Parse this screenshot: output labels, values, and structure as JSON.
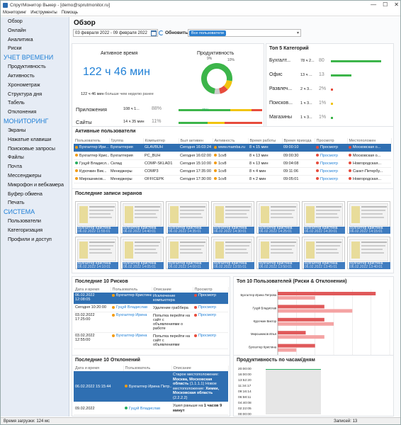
{
  "window": {
    "title": "СпрутМонитор Выкер - [demo@sprutmonitor.ru]",
    "min": "—",
    "max": "☐",
    "close": "✕"
  },
  "menu": [
    "Мониторинг",
    "Инструменты",
    "Помощь"
  ],
  "sidebar": {
    "items_top": [
      "Обзор",
      "Онлайн",
      "Аналитика",
      "Риски"
    ],
    "sec1": "УЧЕТ ВРЕМЕНИ",
    "items1": [
      "Продуктивность",
      "Активность",
      "Хронометраж",
      "Структура дня",
      "Табель",
      "Отклонения"
    ],
    "sec2": "МОНИТОРИНГ",
    "items2": [
      "Экраны",
      "Нажатые клавиши",
      "Поисковые запросы",
      "Файлы",
      "Почта",
      "Мессенджеры",
      "Микрофон и вебкамера",
      "Буфер обмена",
      "Печать"
    ],
    "sec3": "СИСТЕМА",
    "items3": [
      "Пользователи",
      "Категоризация",
      "Профили и доступ"
    ]
  },
  "main": {
    "title": "Обзор",
    "date_range": "03 февраля 2022 - 09 февраля 2022",
    "refresh": "Обновить",
    "user_filter": "Все пользователи",
    "filter_arrow": "▾"
  },
  "active_time": {
    "title": "Активное время",
    "value": "122 ч 46 мин",
    "compare": "122 ч 46 мин",
    "compare_note": "больше чем неделю ранее",
    "rows": [
      {
        "label": "Приложения",
        "time": "108 ч 1...",
        "pct": "88%",
        "g": 0.62,
        "y": 0.25,
        "r": 0.13
      },
      {
        "label": "Сайты",
        "time": "14 ч 35 мин",
        "pct": "11%",
        "g": 0.35,
        "y": 0.2,
        "r": 0.45
      }
    ]
  },
  "productivity": {
    "title": "Продуктивность",
    "pct_green": "75%",
    "pct_yellow": "10%",
    "pct_red": "9%",
    "donut": {
      "green": 75,
      "yellow": 10,
      "red": 9,
      "gray": 6
    }
  },
  "top5": {
    "title": "Топ 5 Категорий",
    "items": [
      {
        "label": "Бухгалт...",
        "time": "78 ч 2...",
        "pct": "80",
        "fill": 0.95,
        "color": "#3cb54a"
      },
      {
        "label": "Офис",
        "time": "13 ч ...",
        "pct": "13",
        "fill": 0.38,
        "color": "#3cb54a"
      },
      {
        "label": "Развлеч...",
        "time": "2 ч 3...",
        "pct": "2%",
        "fill": 0.04,
        "color": "#e74c3c"
      },
      {
        "label": "Поисков...",
        "time": "1 ч 3...",
        "pct": "1%",
        "fill": 0.03,
        "color": "#f1c40f"
      },
      {
        "label": "Магазины",
        "time": "1 ч 3...",
        "pct": "1%",
        "fill": 0.03,
        "color": "#3cb54a"
      }
    ]
  },
  "active_users": {
    "title": "Активные пользователи",
    "headers": [
      "Пользователь",
      "Группа",
      "Компьютер",
      "Был активен",
      "Активность",
      "Время работы",
      "Время прихода",
      "Просмотр",
      "Местоположен"
    ],
    "rows": [
      {
        "user": "Бухгалтер Ири...",
        "dot": "#f39c12",
        "group": "Бухгалтерия",
        "pc": "GLAVBUH",
        "seen": "Сегодня 16:03:24",
        "act": "www.mamba.ru",
        "work": "8 ч 15 мин",
        "arrive": "09:00:10",
        "view": "Просмотр",
        "loc": "Московская о..."
      },
      {
        "user": "Бухгалтер Крис...",
        "dot": "#f39c12",
        "group": "Бухгалтерия",
        "pc": "PC_BUH",
        "seen": "Сегодня 16:02:00",
        "act": "1cv8",
        "work": "8 ч 13 мин",
        "arrive": "09:00:30",
        "view": "Просмотр",
        "loc": "Московская о..."
      },
      {
        "user": "Гуцуй Владисл...",
        "dot": "#27ae60",
        "group": "Склад",
        "pc": "COMP-SKLAD1",
        "seen": "Сегодня 15:10:00",
        "act": "1cv8",
        "work": "8 ч 13 мин",
        "arrive": "09:04:08",
        "view": "Просмотр",
        "loc": "Новгородская..."
      },
      {
        "user": "Курочкин Вик...",
        "dot": "#f39c12",
        "group": "Менеджеры",
        "pc": "COMP3",
        "seen": "Сегодня 17:35:00",
        "act": "1cv8",
        "work": "8 ч 4 мин",
        "arrive": "09:11:06",
        "view": "Просмотр",
        "loc": "Санкт-Петербу..."
      },
      {
        "user": "Мирошников...",
        "dot": "#f39c12",
        "group": "Менеджеры",
        "pc": "OFFICEPK",
        "seen": "Сегодня 17:30:00",
        "act": "1cv8",
        "work": "8 ч 2 мин",
        "arrive": "09:05:01",
        "view": "Просмотр",
        "loc": "Новгородская..."
      }
    ]
  },
  "screens": {
    "title": "Последние записи экранов",
    "row1": [
      {
        "n": "Бухгалтер Кристина",
        "t": "06.02.2022 11:55:01"
      },
      {
        "n": "Бухгалтер Кристина",
        "t": "06.02.2022 14:40:01"
      },
      {
        "n": "Бухгалтер Кристина",
        "t": "06.02.2022 14:35:01"
      },
      {
        "n": "Бухгалтер Кристина",
        "t": "06.02.2022 14:30:01"
      },
      {
        "n": "Бухгалтер Кристина",
        "t": "06.02.2022 14:25:01"
      },
      {
        "n": "Бухгалтер Кристина",
        "t": "06.02.2022 14:20:01"
      },
      {
        "n": "Бухгалтер Кристина",
        "t": "06.02.2022 14:15:01"
      }
    ],
    "row2": [
      {
        "n": "Бухгалтер Кристина",
        "t": "06.02.2022 14:10:01"
      },
      {
        "n": "Бухгалтер Кристина",
        "t": "06.02.2022 14:05:01"
      },
      {
        "n": "Бухгалтер Кристина",
        "t": "06.02.2022 14:00:01"
      },
      {
        "n": "Бухгалтер Кристина",
        "t": "06.02.2022 13:55:01"
      },
      {
        "n": "Бухгалтер Кристина",
        "t": "06.02.2022 13:50:01"
      },
      {
        "n": "Бухгалтер Кристина",
        "t": "06.02.2022 13:45:01"
      },
      {
        "n": "Бухгалтер Кристина",
        "t": "06.02.2022 13:40:01"
      }
    ]
  },
  "risks": {
    "title": "Последние 10 Рисков",
    "headers": [
      "Дата и время",
      "Пользователь",
      "Описание",
      "Просмотр"
    ],
    "rows": [
      {
        "date": "06.02.2022 12:08:05",
        "user": "Бухгалтер Кристина",
        "desc": "Исключение компьютера",
        "view": "Просмотр",
        "sel": true
      },
      {
        "date": "Сегодня 10:20:00",
        "user": "Гуцуй Владислав",
        "desc": "Удаление граббера",
        "view": "Просмотр"
      },
      {
        "date": "03.02.2022 17:25:00",
        "user": "Бухгалтер Ирина",
        "desc": "Попытка перейти на сайт с объявлениями о работе",
        "view": "Просмотр"
      },
      {
        "date": "03.02.2022 12:55:00",
        "user": "Бухгалтер Ирина",
        "desc": "Попытка перейти на сайт с объявлениями",
        "view": "Просмотр"
      }
    ]
  },
  "top10": {
    "title": "Топ 10 Пользователей (Риски & Отклонения)",
    "ticks": [
      "0",
      "2",
      "4",
      "6",
      "8",
      "10",
      "12"
    ],
    "names": [
      "Бухгалтер Ирина Петрова",
      "Гуцуй Владислав",
      "Курочкин Виктор",
      "Мирошников Илья",
      "Бухгалтер Кристина"
    ]
  },
  "chart_data": {
    "type": "bar",
    "categories": [
      "Бухгалтер Ирина Петрова",
      "Гуцуй Владислав",
      "Курочкин Виктор",
      "Мирошников Илья",
      "Бухгалтер Кристина"
    ],
    "series": [
      {
        "values": [
          10.5,
          5,
          5,
          3,
          4
        ]
      },
      {
        "values": [
          4,
          8,
          6,
          5,
          2
        ]
      }
    ],
    "xlim": [
      0,
      12
    ],
    "colors": [
      "#e0595a",
      "#f4a3a3"
    ],
    "legend": "none",
    "grid": true
  },
  "deviations": {
    "title": "Последние 10 Отклонений",
    "headers": [
      "Дата и время",
      "Пользователь",
      "Описание"
    ],
    "rows": [
      {
        "date": "06.02.2022 15:15:44",
        "user": "Бухгалтер Ирина Петр...",
        "desc1": "Старое местоположение:",
        "desc2": "Москва, Московская область",
        "desc3": "(1.1.1.1)",
        "desc4": "Новое местоположение:",
        "desc5": "Химки, Московская область",
        "desc6": "(2.2.2.2)",
        "sel": true
      },
      {
        "date": "09.02.2022",
        "user": "Гуцуй Владислав",
        "desc1": "Ушел раньше на",
        "desc2": "1 часов 9 минут",
        "sel": false
      }
    ]
  },
  "hours": {
    "title": "Продуктивность по часам/дням",
    "ticks": [
      "20:00:00",
      "16:00:00",
      "13:52:20",
      "11:34:17",
      "09:16:14",
      "06:58:11",
      "04:40:08",
      "02:22:05",
      "00:00:00"
    ]
  },
  "status": {
    "load": "Время загрузки: 124 мс",
    "records": "Записей: 13"
  }
}
